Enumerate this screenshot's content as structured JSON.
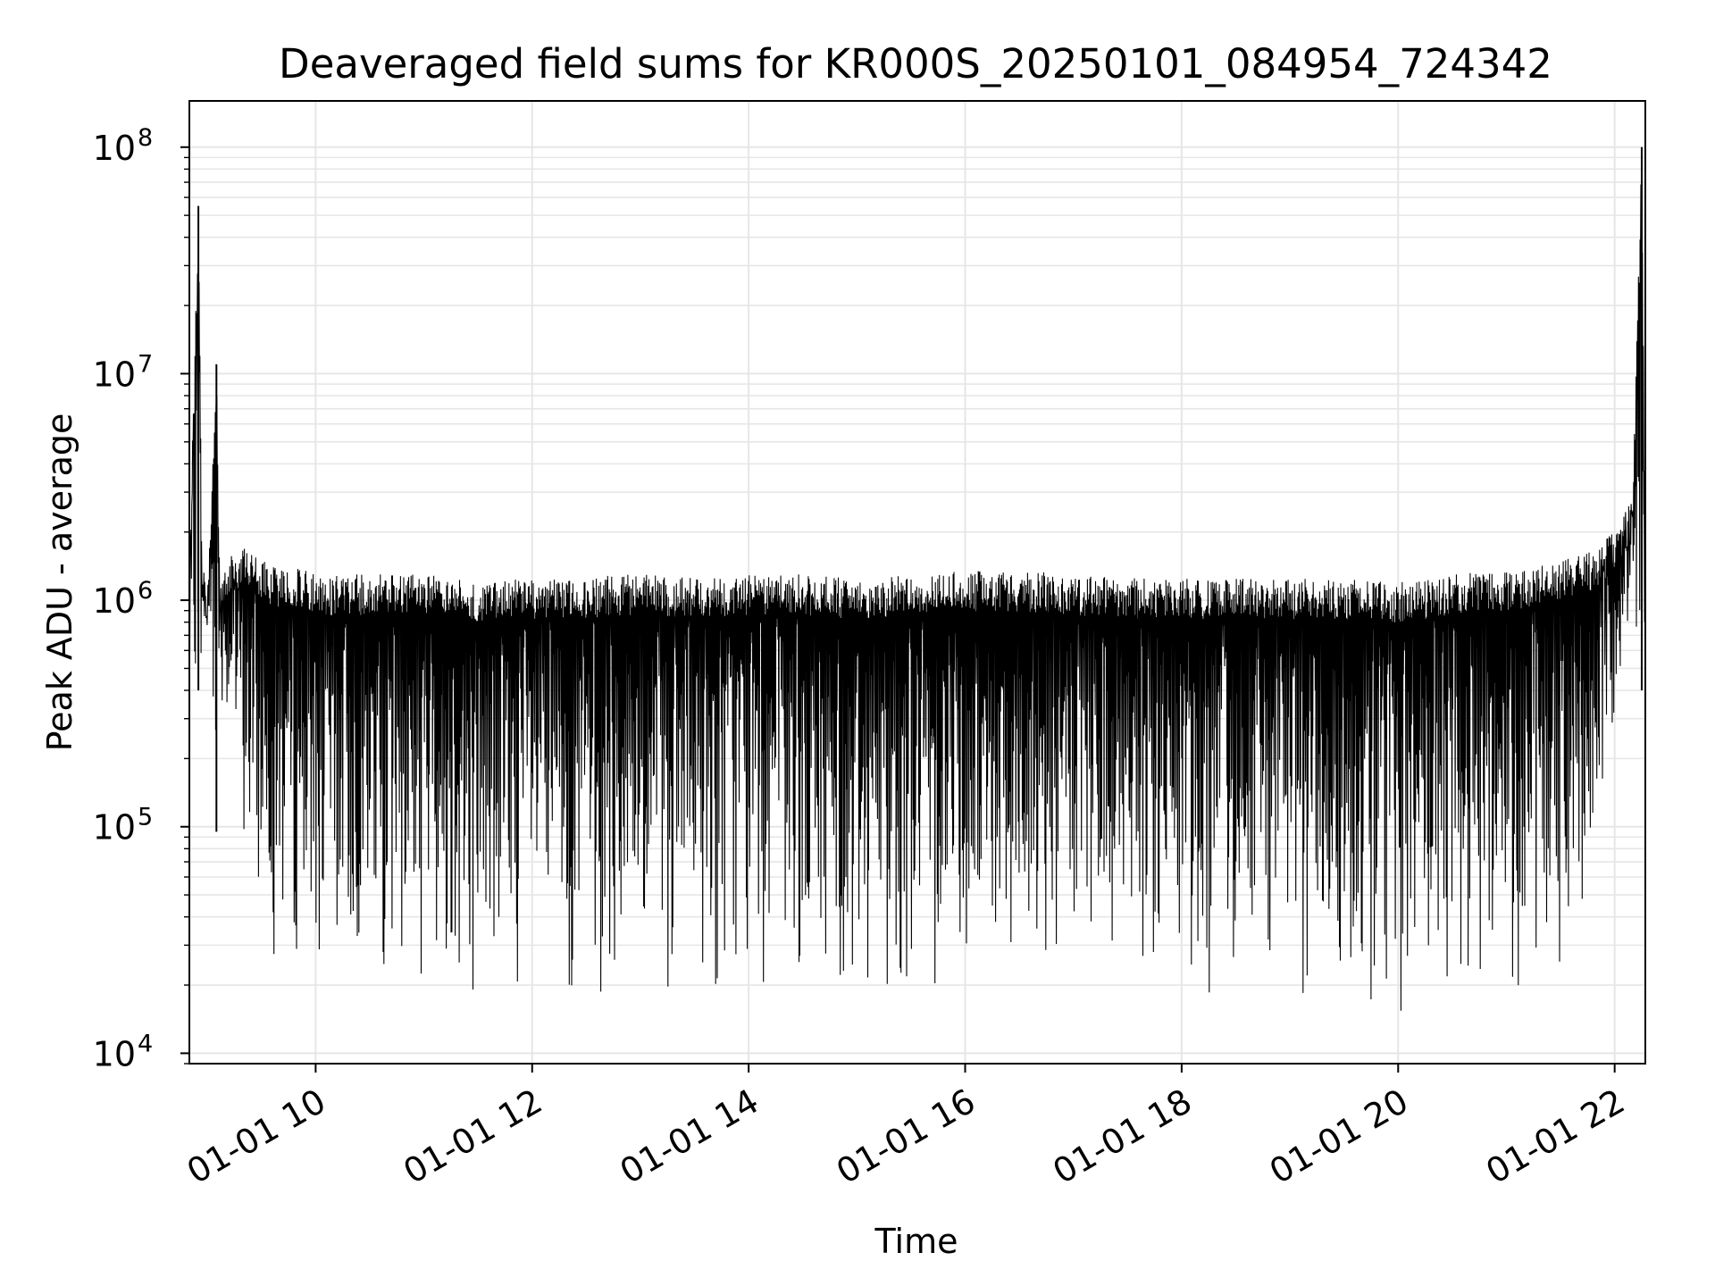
{
  "chart_data": {
    "type": "line",
    "title": "Deaveraged field sums for KR000S_20250101_084954_724342",
    "xlabel": "Time",
    "ylabel": "Peak ADU - average",
    "yscale": "log",
    "ylim": [
      9000,
      160000000
    ],
    "xlim": [
      "01-01 08:50",
      "01-01 22:17"
    ],
    "x_ticks": [
      "01-01 10",
      "01-01 12",
      "01-01 14",
      "01-01 16",
      "01-01 18",
      "01-01 20",
      "01-01 22"
    ],
    "y_ticks": [
      {
        "base": "10",
        "exp": "4",
        "value": 10000
      },
      {
        "base": "10",
        "exp": "5",
        "value": 100000
      },
      {
        "base": "10",
        "exp": "6",
        "value": 1000000
      },
      {
        "base": "10",
        "exp": "7",
        "value": 10000000
      },
      {
        "base": "10",
        "exp": "8",
        "value": 100000000
      }
    ],
    "grid": true,
    "line_color": "#000000",
    "grid_color": "#e6e6e6",
    "series": [
      {
        "x": [
          "01-01 08:50",
          "01-01 08:55",
          "01-01 08:57",
          "01-01 09:00",
          "01-01 09:05",
          "01-01 09:07",
          "01-01 09:10",
          "01-01 09:15",
          "01-01 09:20",
          "01-01 09:30",
          "01-01 09:40",
          "01-01 09:50",
          "01-01 10:00",
          "01-01 10:30",
          "01-01 11:00",
          "01-01 11:30",
          "01-01 12:00",
          "01-01 12:30",
          "01-01 12:50",
          "01-01 13:00",
          "01-01 13:30",
          "01-01 14:00",
          "01-01 14:30",
          "01-01 15:00",
          "01-01 15:30",
          "01-01 16:00",
          "01-01 16:30",
          "01-01 17:00",
          "01-01 17:30",
          "01-01 18:00",
          "01-01 18:30",
          "01-01 19:00",
          "01-01 19:30",
          "01-01 20:00",
          "01-01 20:30",
          "01-01 21:00",
          "01-01 21:30",
          "01-01 21:50",
          "01-01 22:00",
          "01-01 22:10",
          "01-01 22:15",
          "01-01 22:17"
        ],
        "y_max": [
          1400000,
          55000000,
          1500000,
          1100000,
          11000000,
          1200000,
          1500000,
          1600000,
          1800000,
          1500000,
          1400000,
          1400000,
          1300000,
          1300000,
          1300000,
          1200000,
          1250000,
          1250000,
          1300000,
          1300000,
          1250000,
          1300000,
          1300000,
          1250000,
          1300000,
          1350000,
          1350000,
          1300000,
          1250000,
          1250000,
          1250000,
          1250000,
          1250000,
          1200000,
          1300000,
          1350000,
          1500000,
          1700000,
          2100000,
          2800000,
          100000000,
          1300000
        ],
        "y_min": [
          250000,
          400000,
          500000,
          700000,
          95000,
          400000,
          300000,
          150000,
          60000,
          30000,
          25000,
          22000,
          22000,
          20000,
          18000,
          17000,
          16000,
          15000,
          14000,
          16000,
          17000,
          17000,
          17500,
          14500,
          19000,
          19000,
          18000,
          18000,
          17000,
          15000,
          16500,
          17000,
          16000,
          14500,
          16000,
          17000,
          25000,
          45000,
          300000,
          1000000,
          400000,
          300000
        ]
      }
    ]
  }
}
